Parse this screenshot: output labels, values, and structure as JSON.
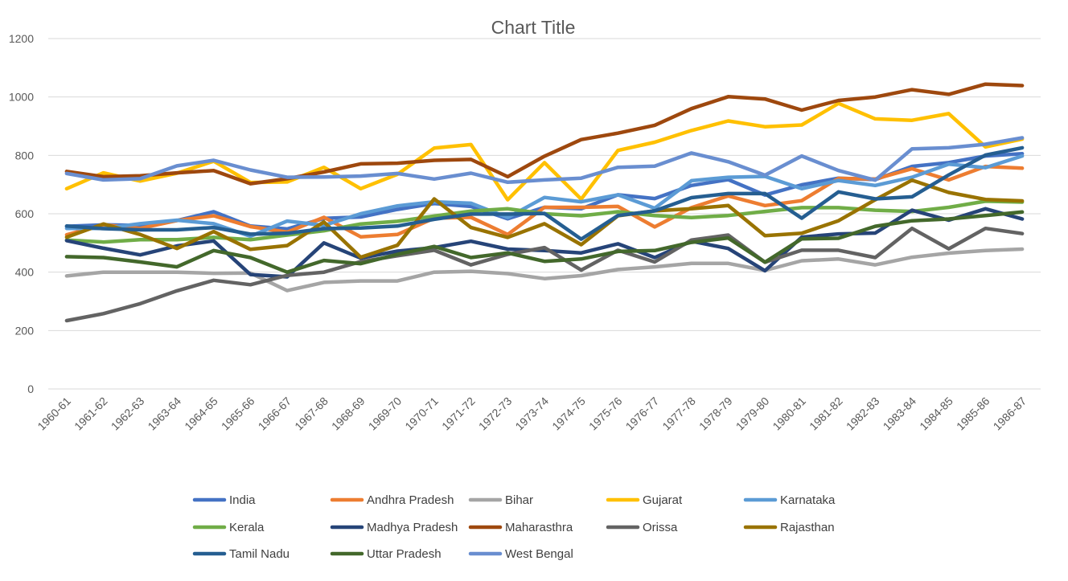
{
  "chart_data": {
    "type": "line",
    "title": "Chart Title",
    "xlabel": "",
    "ylabel": "",
    "ylim": [
      0,
      1200
    ],
    "yticks": [
      0,
      200,
      400,
      600,
      800,
      1000,
      1200
    ],
    "grid": true,
    "legend": "bottom",
    "categories": [
      "1960-61",
      "1961-62",
      "1962-63",
      "1963-64",
      "1964-65",
      "1965-66",
      "1966-67",
      "1967-68",
      "1968-69",
      "1969-70",
      "1970-71",
      "1971-72",
      "1972-73",
      "1973-74",
      "1974-75",
      "1975-76",
      "1976-77",
      "1977-78",
      "1978-79",
      "1979-80",
      "1980-81",
      "1981-82",
      "1982-83",
      "1983-84",
      "1984-85",
      "1985-86",
      "1986-87"
    ],
    "series": [
      {
        "name": "India",
        "color": "#4472C4",
        "values": [
          557,
          562,
          560,
          577,
          607,
          558,
          548,
          584,
          589,
          615,
          635,
          625,
          583,
          622,
          617,
          665,
          652,
          697,
          717,
          664,
          699,
          722,
          717,
          762,
          775,
          798,
          806
        ]
      },
      {
        "name": "Andhra Pradesh",
        "color": "#ED7D31",
        "values": [
          528,
          562,
          550,
          577,
          593,
          556,
          537,
          588,
          521,
          529,
          585,
          588,
          529,
          622,
          622,
          625,
          555,
          621,
          661,
          628,
          645,
          721,
          719,
          754,
          716,
          762,
          756
        ]
      },
      {
        "name": "Bihar",
        "color": "#A5A5A5",
        "values": [
          387,
          400,
          400,
          400,
          396,
          397,
          337,
          365,
          370,
          370,
          400,
          403,
          395,
          378,
          388,
          409,
          418,
          430,
          430,
          406,
          439,
          445,
          425,
          451,
          465,
          474,
          479
        ]
      },
      {
        "name": "Gujarat",
        "color": "#FFC000",
        "values": [
          686,
          740,
          712,
          739,
          780,
          707,
          709,
          759,
          686,
          735,
          825,
          837,
          648,
          775,
          650,
          817,
          845,
          885,
          918,
          898,
          904,
          978,
          925,
          920,
          943,
          829,
          856
        ]
      },
      {
        "name": "Karnataka",
        "color": "#5B9BD5",
        "values": [
          550,
          550,
          566,
          578,
          566,
          523,
          575,
          560,
          600,
          627,
          641,
          636,
          587,
          656,
          641,
          665,
          619,
          713,
          725,
          728,
          686,
          714,
          697,
          725,
          770,
          758,
          798
        ]
      },
      {
        "name": "Kerala",
        "color": "#70AD47",
        "values": [
          510,
          503,
          511,
          511,
          519,
          511,
          527,
          542,
          565,
          574,
          592,
          609,
          617,
          600,
          593,
          607,
          594,
          587,
          594,
          608,
          621,
          621,
          612,
          608,
          622,
          643,
          640
        ]
      },
      {
        "name": "Madhya Pradesh",
        "color": "#264478",
        "values": [
          508,
          482,
          459,
          490,
          507,
          392,
          384,
          500,
          448,
          472,
          484,
          506,
          479,
          474,
          466,
          497,
          450,
          506,
          481,
          405,
          520,
          531,
          534,
          612,
          578,
          617,
          582
        ]
      },
      {
        "name": "Maharasthra",
        "color": "#9E480E",
        "values": [
          745,
          727,
          730,
          740,
          748,
          703,
          720,
          743,
          771,
          773,
          783,
          786,
          727,
          797,
          854,
          876,
          903,
          960,
          1001,
          993,
          955,
          988,
          1000,
          1025,
          1009,
          1044,
          1039
        ]
      },
      {
        "name": "Orissa",
        "color": "#636363",
        "values": [
          234,
          258,
          292,
          336,
          372,
          357,
          389,
          400,
          436,
          456,
          475,
          425,
          461,
          484,
          407,
          475,
          435,
          510,
          527,
          434,
          475,
          475,
          450,
          550,
          480,
          550,
          532
        ]
      },
      {
        "name": "Rajasthan",
        "color": "#997300",
        "values": [
          520,
          565,
          529,
          481,
          539,
          478,
          491,
          572,
          451,
          492,
          651,
          553,
          519,
          566,
          494,
          593,
          610,
          617,
          628,
          525,
          533,
          576,
          648,
          715,
          673,
          649,
          644
        ]
      },
      {
        "name": "Tamil Nadu",
        "color": "#255E91",
        "values": [
          558,
          549,
          545,
          545,
          553,
          530,
          533,
          549,
          551,
          558,
          581,
          599,
          599,
          601,
          513,
          594,
          610,
          655,
          669,
          669,
          585,
          675,
          651,
          658,
          733,
          801,
          826
        ]
      },
      {
        "name": "Uttar Pradesh",
        "color": "#43682B",
        "values": [
          453,
          450,
          435,
          418,
          474,
          450,
          400,
          440,
          429,
          461,
          488,
          450,
          466,
          437,
          445,
          471,
          474,
          502,
          517,
          434,
          514,
          516,
          557,
          576,
          582,
          594,
          606
        ]
      },
      {
        "name": "West Bengal",
        "color": "#698ED0",
        "values": [
          738,
          716,
          720,
          764,
          783,
          750,
          725,
          726,
          729,
          738,
          719,
          739,
          708,
          716,
          722,
          759,
          763,
          808,
          778,
          732,
          798,
          748,
          715,
          822,
          826,
          838,
          860
        ]
      }
    ]
  }
}
